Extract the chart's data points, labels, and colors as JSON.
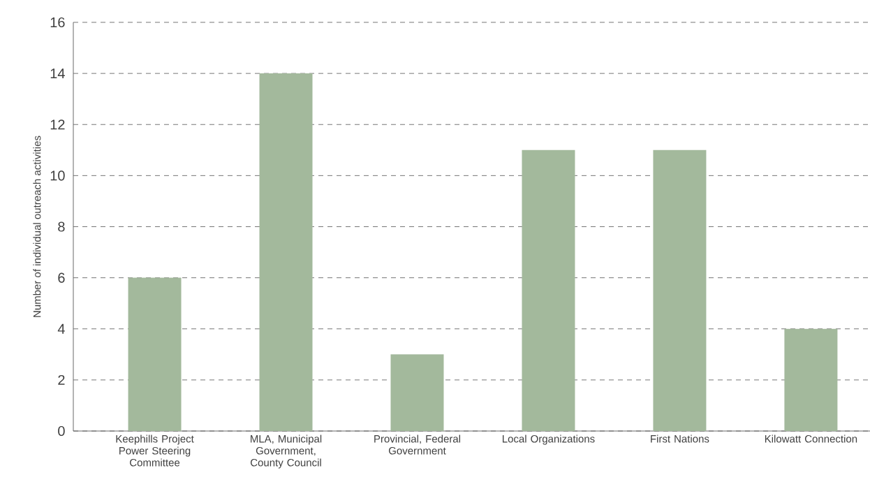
{
  "chart_data": {
    "type": "bar",
    "ylabel": "Number of individual outreach activities",
    "categories": [
      "Keephills Project Power Steering Committee",
      "MLA, Municipal Government, County Council",
      "Provincial, Federal Government",
      "Local Organizations",
      "First Nations",
      "Kilowatt Connection"
    ],
    "values": [
      6,
      14,
      3,
      11,
      11,
      4
    ],
    "color": "#a3b99c",
    "ylim": [
      0,
      16
    ],
    "yticks": [
      0,
      2,
      4,
      6,
      8,
      10,
      12,
      14,
      16
    ],
    "grid": "y"
  }
}
